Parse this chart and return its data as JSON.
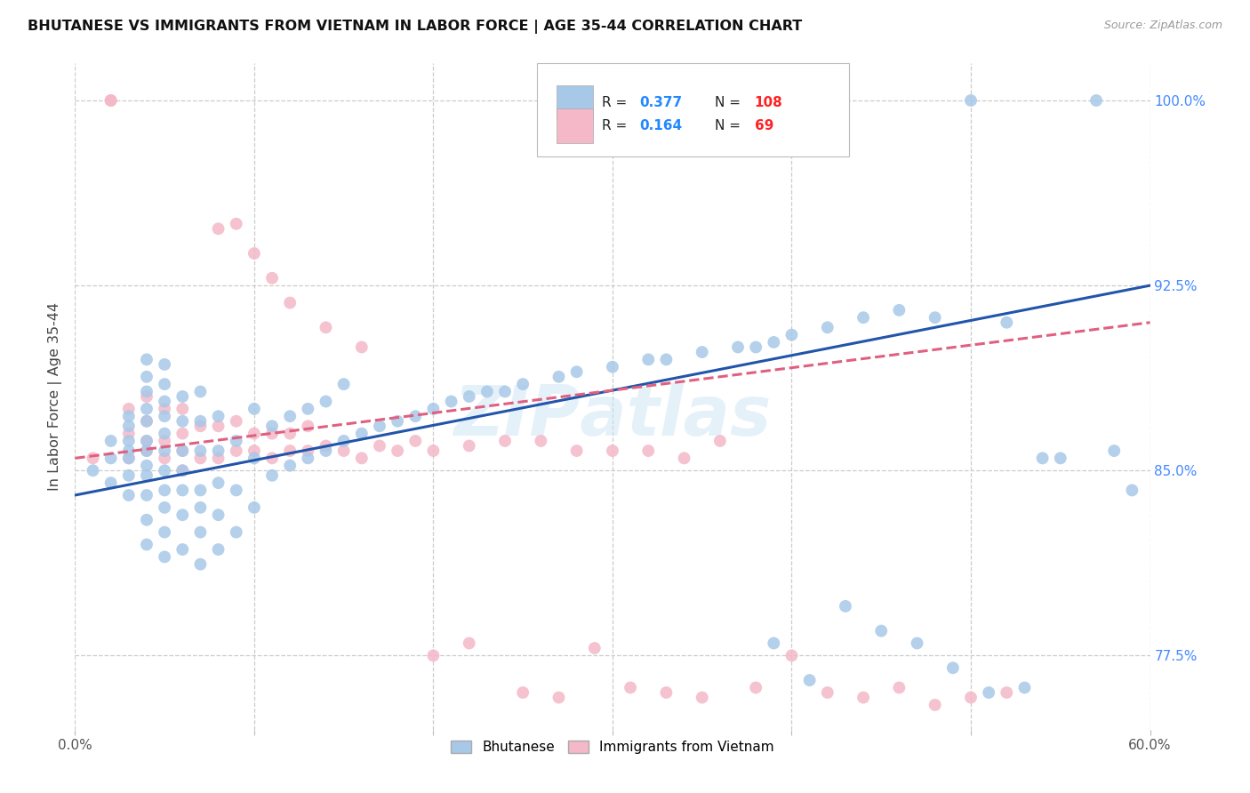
{
  "title": "BHUTANESE VS IMMIGRANTS FROM VIETNAM IN LABOR FORCE | AGE 35-44 CORRELATION CHART",
  "source": "Source: ZipAtlas.com",
  "ylabel": "In Labor Force | Age 35-44",
  "xlim": [
    0.0,
    0.6
  ],
  "ylim": [
    0.745,
    1.015
  ],
  "ytick_values": [
    0.775,
    0.85,
    0.925,
    1.0
  ],
  "ytick_labels": [
    "77.5%",
    "85.0%",
    "92.5%",
    "100.0%"
  ],
  "blue_R": 0.377,
  "blue_N": 108,
  "pink_R": 0.164,
  "pink_N": 69,
  "blue_color": "#a8c8e8",
  "pink_color": "#f4b8c8",
  "blue_line_color": "#2255aa",
  "pink_line_color": "#e06080",
  "legend_R_color": "#2288ff",
  "legend_N_color": "#ff2222",
  "blue_line_x0": 0.0,
  "blue_line_y0": 0.84,
  "blue_line_x1": 0.6,
  "blue_line_y1": 0.925,
  "pink_line_x0": 0.0,
  "pink_line_y0": 0.855,
  "pink_line_x1": 0.6,
  "pink_line_y1": 0.91,
  "blue_x": [
    0.01,
    0.02,
    0.02,
    0.02,
    0.03,
    0.03,
    0.03,
    0.03,
    0.03,
    0.03,
    0.03,
    0.04,
    0.04,
    0.04,
    0.04,
    0.04,
    0.04,
    0.04,
    0.04,
    0.04,
    0.04,
    0.04,
    0.04,
    0.05,
    0.05,
    0.05,
    0.05,
    0.05,
    0.05,
    0.05,
    0.05,
    0.05,
    0.05,
    0.05,
    0.06,
    0.06,
    0.06,
    0.06,
    0.06,
    0.06,
    0.06,
    0.07,
    0.07,
    0.07,
    0.07,
    0.07,
    0.07,
    0.07,
    0.08,
    0.08,
    0.08,
    0.08,
    0.08,
    0.09,
    0.09,
    0.09,
    0.1,
    0.1,
    0.1,
    0.11,
    0.11,
    0.12,
    0.12,
    0.13,
    0.13,
    0.14,
    0.14,
    0.15,
    0.15,
    0.16,
    0.17,
    0.18,
    0.19,
    0.2,
    0.21,
    0.22,
    0.23,
    0.24,
    0.25,
    0.27,
    0.28,
    0.3,
    0.32,
    0.33,
    0.35,
    0.37,
    0.38,
    0.39,
    0.4,
    0.42,
    0.44,
    0.46,
    0.48,
    0.5,
    0.52,
    0.54,
    0.55,
    0.57,
    0.58,
    0.59,
    0.39,
    0.41,
    0.43,
    0.45,
    0.47,
    0.49,
    0.51,
    0.53
  ],
  "blue_y": [
    0.85,
    0.845,
    0.855,
    0.862,
    0.84,
    0.848,
    0.855,
    0.858,
    0.862,
    0.868,
    0.872,
    0.82,
    0.83,
    0.84,
    0.848,
    0.852,
    0.858,
    0.862,
    0.87,
    0.875,
    0.882,
    0.888,
    0.895,
    0.815,
    0.825,
    0.835,
    0.842,
    0.85,
    0.858,
    0.865,
    0.872,
    0.878,
    0.885,
    0.893,
    0.818,
    0.832,
    0.842,
    0.85,
    0.858,
    0.87,
    0.88,
    0.812,
    0.825,
    0.835,
    0.842,
    0.858,
    0.87,
    0.882,
    0.818,
    0.832,
    0.845,
    0.858,
    0.872,
    0.825,
    0.842,
    0.862,
    0.835,
    0.855,
    0.875,
    0.848,
    0.868,
    0.852,
    0.872,
    0.855,
    0.875,
    0.858,
    0.878,
    0.862,
    0.885,
    0.865,
    0.868,
    0.87,
    0.872,
    0.875,
    0.878,
    0.88,
    0.882,
    0.882,
    0.885,
    0.888,
    0.89,
    0.892,
    0.895,
    0.895,
    0.898,
    0.9,
    0.9,
    0.902,
    0.905,
    0.908,
    0.912,
    0.915,
    0.912,
    1.0,
    0.91,
    0.855,
    0.855,
    1.0,
    0.858,
    0.842,
    0.78,
    0.765,
    0.795,
    0.785,
    0.78,
    0.77,
    0.76,
    0.762
  ],
  "pink_x": [
    0.01,
    0.02,
    0.02,
    0.03,
    0.03,
    0.03,
    0.04,
    0.04,
    0.04,
    0.04,
    0.05,
    0.05,
    0.05,
    0.06,
    0.06,
    0.06,
    0.06,
    0.07,
    0.07,
    0.08,
    0.08,
    0.09,
    0.09,
    0.1,
    0.1,
    0.11,
    0.11,
    0.12,
    0.12,
    0.13,
    0.13,
    0.14,
    0.15,
    0.16,
    0.17,
    0.18,
    0.19,
    0.2,
    0.22,
    0.24,
    0.26,
    0.28,
    0.3,
    0.32,
    0.34,
    0.36,
    0.2,
    0.22,
    0.25,
    0.27,
    0.29,
    0.31,
    0.33,
    0.35,
    0.38,
    0.4,
    0.42,
    0.44,
    0.46,
    0.48,
    0.5,
    0.52,
    0.08,
    0.09,
    0.1,
    0.11,
    0.12,
    0.14,
    0.16
  ],
  "pink_y": [
    0.855,
    1.0,
    1.0,
    0.855,
    0.865,
    0.875,
    0.858,
    0.862,
    0.87,
    0.88,
    0.855,
    0.862,
    0.875,
    0.85,
    0.858,
    0.865,
    0.875,
    0.855,
    0.868,
    0.855,
    0.868,
    0.858,
    0.87,
    0.858,
    0.865,
    0.855,
    0.865,
    0.858,
    0.865,
    0.858,
    0.868,
    0.86,
    0.858,
    0.855,
    0.86,
    0.858,
    0.862,
    0.858,
    0.86,
    0.862,
    0.862,
    0.858,
    0.858,
    0.858,
    0.855,
    0.862,
    0.775,
    0.78,
    0.76,
    0.758,
    0.778,
    0.762,
    0.76,
    0.758,
    0.762,
    0.775,
    0.76,
    0.758,
    0.762,
    0.755,
    0.758,
    0.76,
    0.948,
    0.95,
    0.938,
    0.928,
    0.918,
    0.908,
    0.9
  ]
}
